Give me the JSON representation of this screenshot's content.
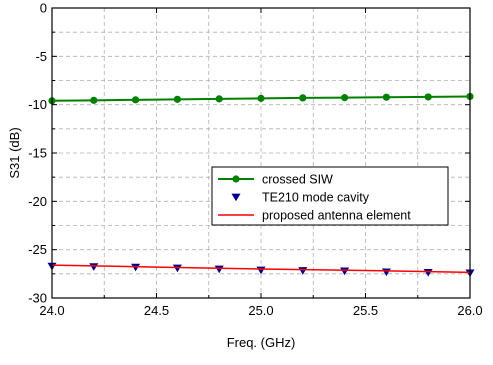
{
  "chart_data": {
    "type": "line",
    "xlabel": "Freq. (GHz)",
    "ylabel": "S31 (dB)",
    "xlim": [
      24.0,
      26.0
    ],
    "ylim": [
      -30,
      0
    ],
    "x_ticks": [
      "24.0",
      "24.5",
      "25.0",
      "25.5",
      "26.0"
    ],
    "y_ticks": [
      "0",
      "-5",
      "-10",
      "-15",
      "-20",
      "-25",
      "-30"
    ],
    "grid": "dashed, major and minor",
    "legend_position": "center-right",
    "series": [
      {
        "name": "crossed SIW",
        "style": "line-circle",
        "color": "#008000",
        "x": [
          24.0,
          24.2,
          24.4,
          24.6,
          24.8,
          25.0,
          25.2,
          25.4,
          25.6,
          25.8,
          26.0
        ],
        "y": [
          -9.6,
          -9.55,
          -9.5,
          -9.45,
          -9.4,
          -9.35,
          -9.3,
          -9.27,
          -9.23,
          -9.2,
          -9.15
        ]
      },
      {
        "name": "TE210 mode cavity",
        "style": "marker-triangle-down",
        "color": "#00008B",
        "x": [
          24.0,
          24.2,
          24.4,
          24.6,
          24.8,
          25.0,
          25.2,
          25.4,
          25.6,
          25.8,
          26.0
        ],
        "y": [
          -26.7,
          -26.75,
          -26.8,
          -26.9,
          -27.0,
          -27.1,
          -27.15,
          -27.2,
          -27.3,
          -27.35,
          -27.4
        ]
      },
      {
        "name": "proposed antenna element",
        "style": "line",
        "color": "#FF0000",
        "x": [
          24.0,
          24.5,
          25.0,
          25.5,
          26.0
        ],
        "y": [
          -26.6,
          -26.8,
          -27.0,
          -27.15,
          -27.35
        ]
      }
    ]
  }
}
